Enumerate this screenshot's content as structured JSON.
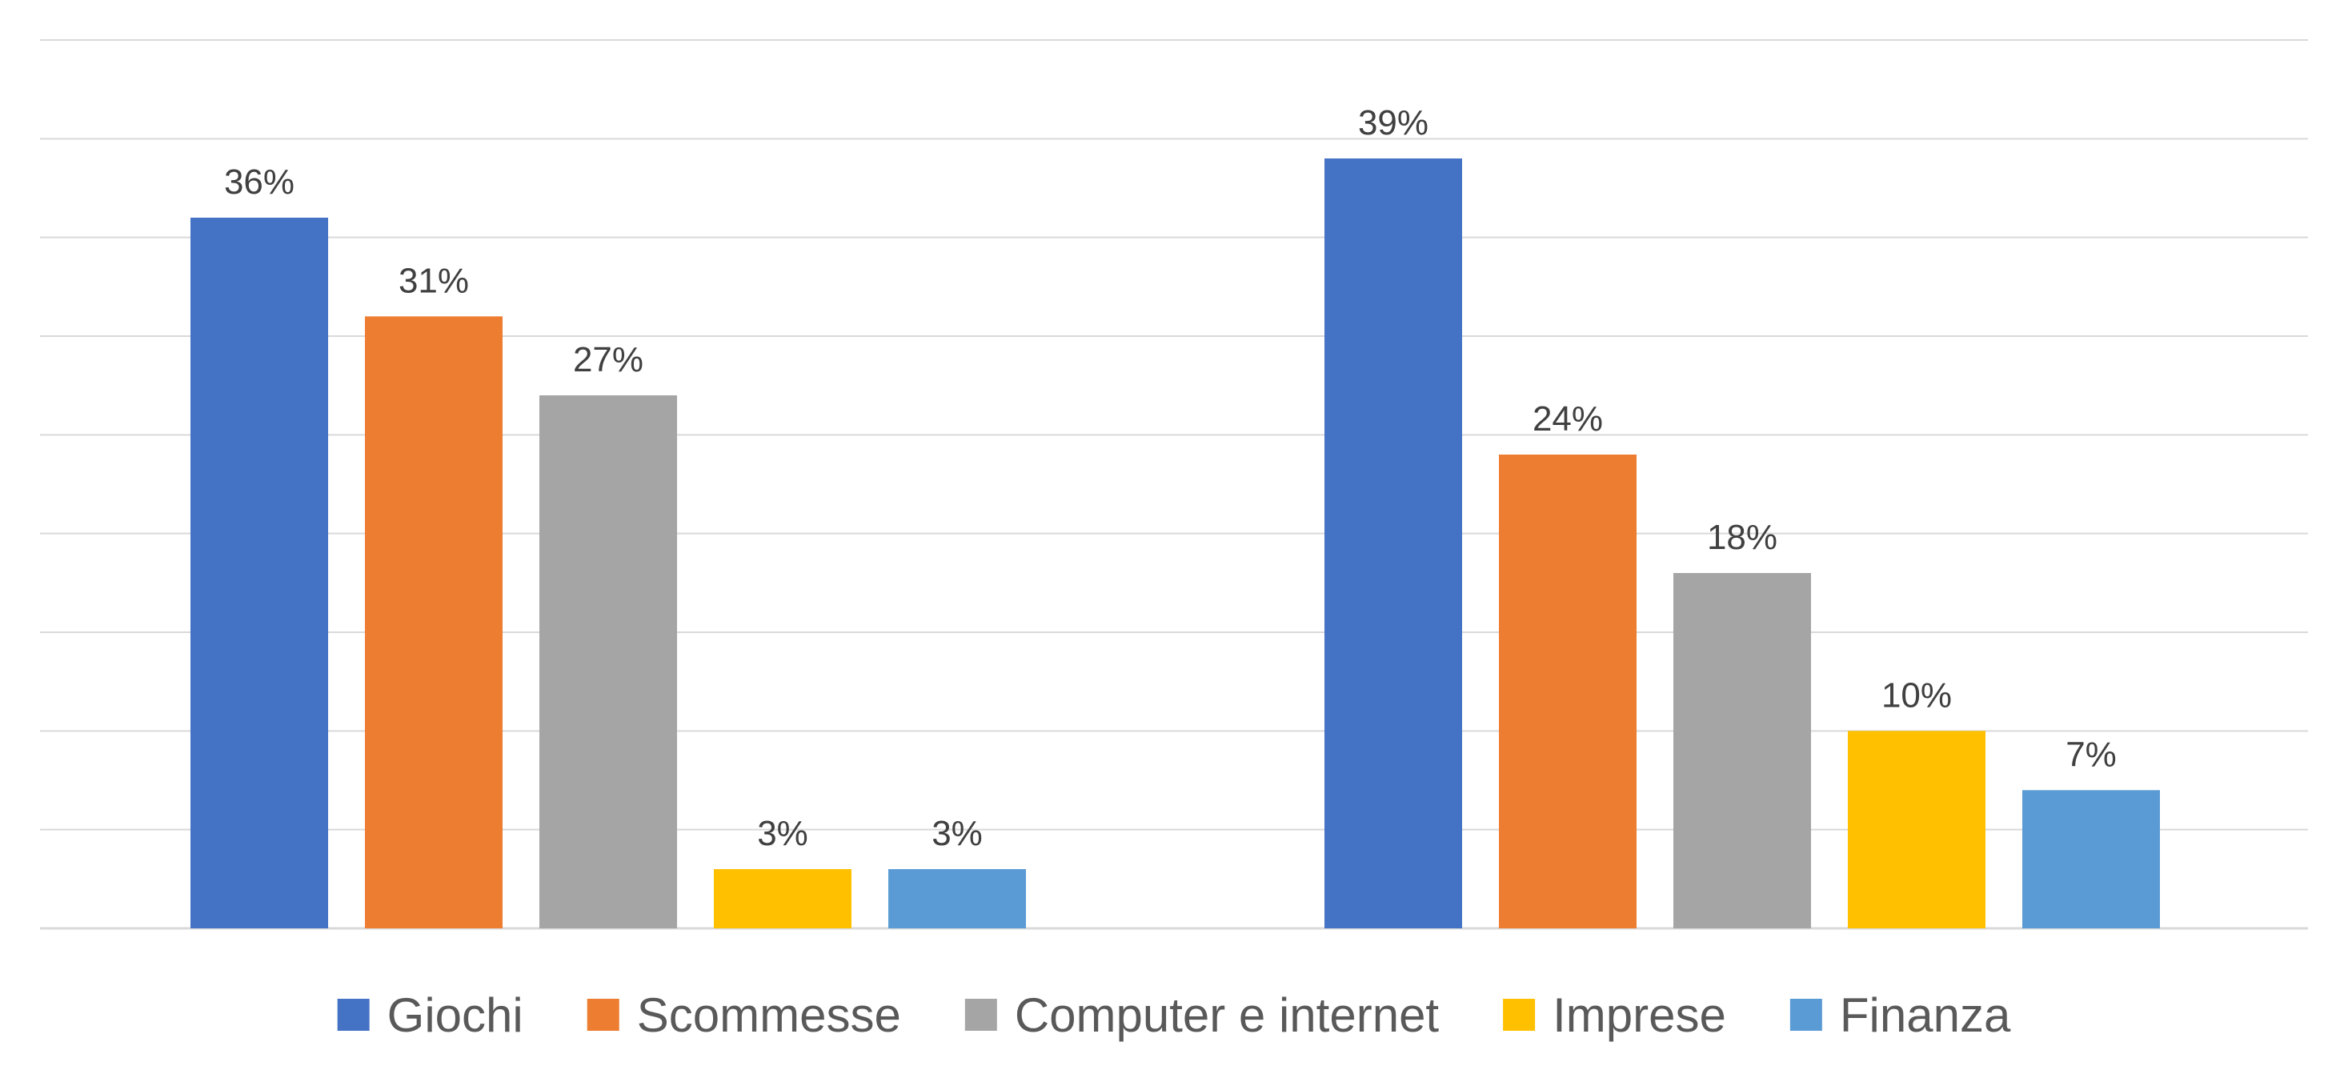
{
  "chart_data": {
    "type": "bar",
    "title": "",
    "xlabel": "",
    "ylabel": "",
    "ylim": [
      0,
      45
    ],
    "grid": true,
    "legend_position": "bottom",
    "categories": [
      "",
      ""
    ],
    "series": [
      {
        "name": "Giochi",
        "color": "#4472C4",
        "values": [
          36,
          39
        ],
        "labels": [
          "36%",
          "39%"
        ]
      },
      {
        "name": "Scommesse",
        "color": "#ED7D31",
        "values": [
          31,
          24
        ],
        "labels": [
          "31%",
          "24%"
        ]
      },
      {
        "name": "Computer e internet",
        "color": "#A5A5A5",
        "values": [
          27,
          18
        ],
        "labels": [
          "27%",
          "18%"
        ]
      },
      {
        "name": "Imprese",
        "color": "#FFC000",
        "values": [
          3,
          10
        ],
        "labels": [
          "3%",
          "10%"
        ]
      },
      {
        "name": "Finanza",
        "color": "#5B9BD5",
        "values": [
          3,
          7
        ],
        "labels": [
          "3%",
          "7%"
        ]
      }
    ]
  }
}
